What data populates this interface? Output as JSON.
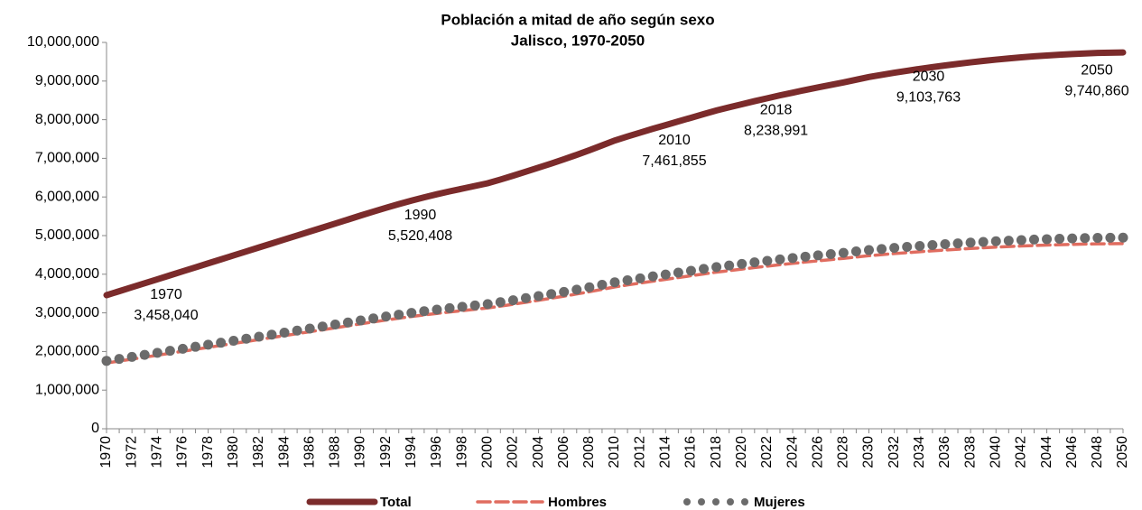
{
  "chart_data": {
    "type": "line",
    "title": "Población a mitad de año según sexo",
    "subtitle": "Jalisco, 1970-2050",
    "categories": [
      "1970",
      null,
      "1972",
      null,
      "1974",
      null,
      "1976",
      null,
      "1978",
      null,
      "1980",
      null,
      "1982",
      null,
      "1984",
      null,
      "1986",
      null,
      "1988",
      null,
      "1990",
      null,
      "1992",
      null,
      "1994",
      null,
      "1996",
      null,
      "1998",
      null,
      "2000",
      null,
      "2002",
      null,
      "2004",
      null,
      "2006",
      null,
      "2008",
      null,
      "2010",
      null,
      "2012",
      null,
      "2014",
      null,
      "2016",
      null,
      "2018",
      null,
      "2020",
      null,
      "2022",
      null,
      "2024",
      null,
      "2026",
      null,
      "2028",
      null,
      "2030",
      null,
      "2032",
      null,
      "2034",
      null,
      "2036",
      null,
      "2038",
      null,
      "2040",
      null,
      "2042",
      null,
      "2044",
      null,
      "2046",
      null,
      "2048",
      null,
      "2050"
    ],
    "series": [
      {
        "name": "Total",
        "color": "#7b2b2b",
        "style": "solid",
        "values": [
          3458040,
          3560000,
          3663000,
          3766000,
          3869000,
          3972000,
          4075000,
          4178000,
          4281000,
          4384000,
          4487000,
          4590000,
          4693000,
          4796000,
          4899000,
          5002000,
          5105000,
          5208000,
          5311000,
          5415000,
          5520408,
          5620000,
          5720000,
          5815000,
          5905000,
          5990000,
          6070000,
          6145000,
          6215000,
          6285000,
          6355000,
          6450000,
          6550000,
          6655000,
          6760000,
          6865000,
          6975000,
          7090000,
          7210000,
          7335000,
          7461855,
          7565000,
          7665000,
          7765000,
          7860000,
          7955000,
          8050000,
          8145000,
          8238991,
          8320000,
          8400000,
          8480000,
          8555000,
          8630000,
          8700000,
          8770000,
          8835000,
          8900000,
          8965000,
          9035000,
          9103763,
          9160000,
          9215000,
          9265000,
          9315000,
          9360000,
          9405000,
          9445000,
          9485000,
          9520000,
          9555000,
          9585000,
          9615000,
          9640000,
          9662000,
          9682000,
          9700000,
          9715000,
          9727000,
          9735000,
          9740860
        ],
        "value_labels": [
          "3,458,040",
          null,
          null,
          null,
          null,
          null,
          null,
          null,
          null,
          null,
          null,
          null,
          null,
          null,
          null,
          null,
          null,
          null,
          null,
          null,
          "5,520,408",
          null,
          null,
          null,
          null,
          null,
          null,
          null,
          null,
          null,
          null,
          null,
          null,
          null,
          null,
          null,
          null,
          null,
          null,
          null,
          "7,461,855",
          null,
          null,
          null,
          null,
          null,
          null,
          null,
          "8,238,991",
          null,
          null,
          null,
          null,
          null,
          null,
          null,
          null,
          null,
          null,
          null,
          "9,103,763",
          null,
          null,
          null,
          null,
          null,
          null,
          null,
          null,
          null,
          null,
          null,
          null,
          null,
          null,
          null,
          null,
          null,
          null,
          null,
          "9,740,860"
        ]
      },
      {
        "name": "Hombres",
        "color": "#e06c5f",
        "style": "dashed",
        "values": [
          1701000,
          1752000,
          1802000,
          1853000,
          1904000,
          1954000,
          2005000,
          2056000,
          2106000,
          2157000,
          2208000,
          2258000,
          2309000,
          2360000,
          2410000,
          2461000,
          2512000,
          2562000,
          2613000,
          2664000,
          2716000,
          2765000,
          2814000,
          2861000,
          2905000,
          2947000,
          2986000,
          3023000,
          3058000,
          3092000,
          3127000,
          3173000,
          3223000,
          3274000,
          3326000,
          3378000,
          3432000,
          3488000,
          3547000,
          3609000,
          3671000,
          3722000,
          3771000,
          3820000,
          3867000,
          3914000,
          3961000,
          4007000,
          4054000,
          4093000,
          4133000,
          4172000,
          4209000,
          4246000,
          4280000,
          4315000,
          4347000,
          4379000,
          4411000,
          4445000,
          4479000,
          4507000,
          4534000,
          4558000,
          4583000,
          4605000,
          4627000,
          4647000,
          4667000,
          4684000,
          4701000,
          4716000,
          4731000,
          4743000,
          4754000,
          4764000,
          4772000,
          4780000,
          4786000,
          4790000,
          4793000
        ]
      },
      {
        "name": "Mujeres",
        "color": "#6b6b6b",
        "style": "dotted",
        "values": [
          1757000,
          1808000,
          1861000,
          1913000,
          1965000,
          2018000,
          2070000,
          2122000,
          2175000,
          2227000,
          2279000,
          2332000,
          2384000,
          2436000,
          2489000,
          2541000,
          2593000,
          2646000,
          2698000,
          2751000,
          2804000,
          2855000,
          2906000,
          2954000,
          3000000,
          3043000,
          3084000,
          3122000,
          3157000,
          3193000,
          3228000,
          3277000,
          3327000,
          3381000,
          3434000,
          3487000,
          3543000,
          3602000,
          3663000,
          3726000,
          3791000,
          3843000,
          3894000,
          3945000,
          3993000,
          4041000,
          4089000,
          4138000,
          4185000,
          4227000,
          4267000,
          4308000,
          4346000,
          4384000,
          4420000,
          4455000,
          4488000,
          4521000,
          4554000,
          4590000,
          4625000,
          4653000,
          4681000,
          4707000,
          4732000,
          4755000,
          4778000,
          4798000,
          4818000,
          4836000,
          4854000,
          4869000,
          4884000,
          4897000,
          4908000,
          4918000,
          4928000,
          4935000,
          4941000,
          4945000,
          4948000
        ]
      }
    ],
    "ylim": [
      0,
      10000000
    ],
    "yticks": [
      0,
      {
        "value": 1000000,
        "label": "1,000,000"
      },
      {
        "value": 2000000,
        "label": "2,000,000"
      },
      {
        "value": 3000000,
        "label": "3,000,000"
      },
      {
        "value": 4000000,
        "label": "4,000,000"
      },
      {
        "value": 5000000,
        "label": "5,000,000"
      },
      {
        "value": 6000000,
        "label": "6,000,000"
      },
      {
        "value": 7000000,
        "label": "7,000,000"
      },
      {
        "value": 8000000,
        "label": "8,000,000"
      },
      {
        "value": 9000000,
        "label": "9,000,000"
      },
      {
        "value": 10000000,
        "label": "10,000,000"
      }
    ],
    "grid": false,
    "legend": "bottom"
  }
}
